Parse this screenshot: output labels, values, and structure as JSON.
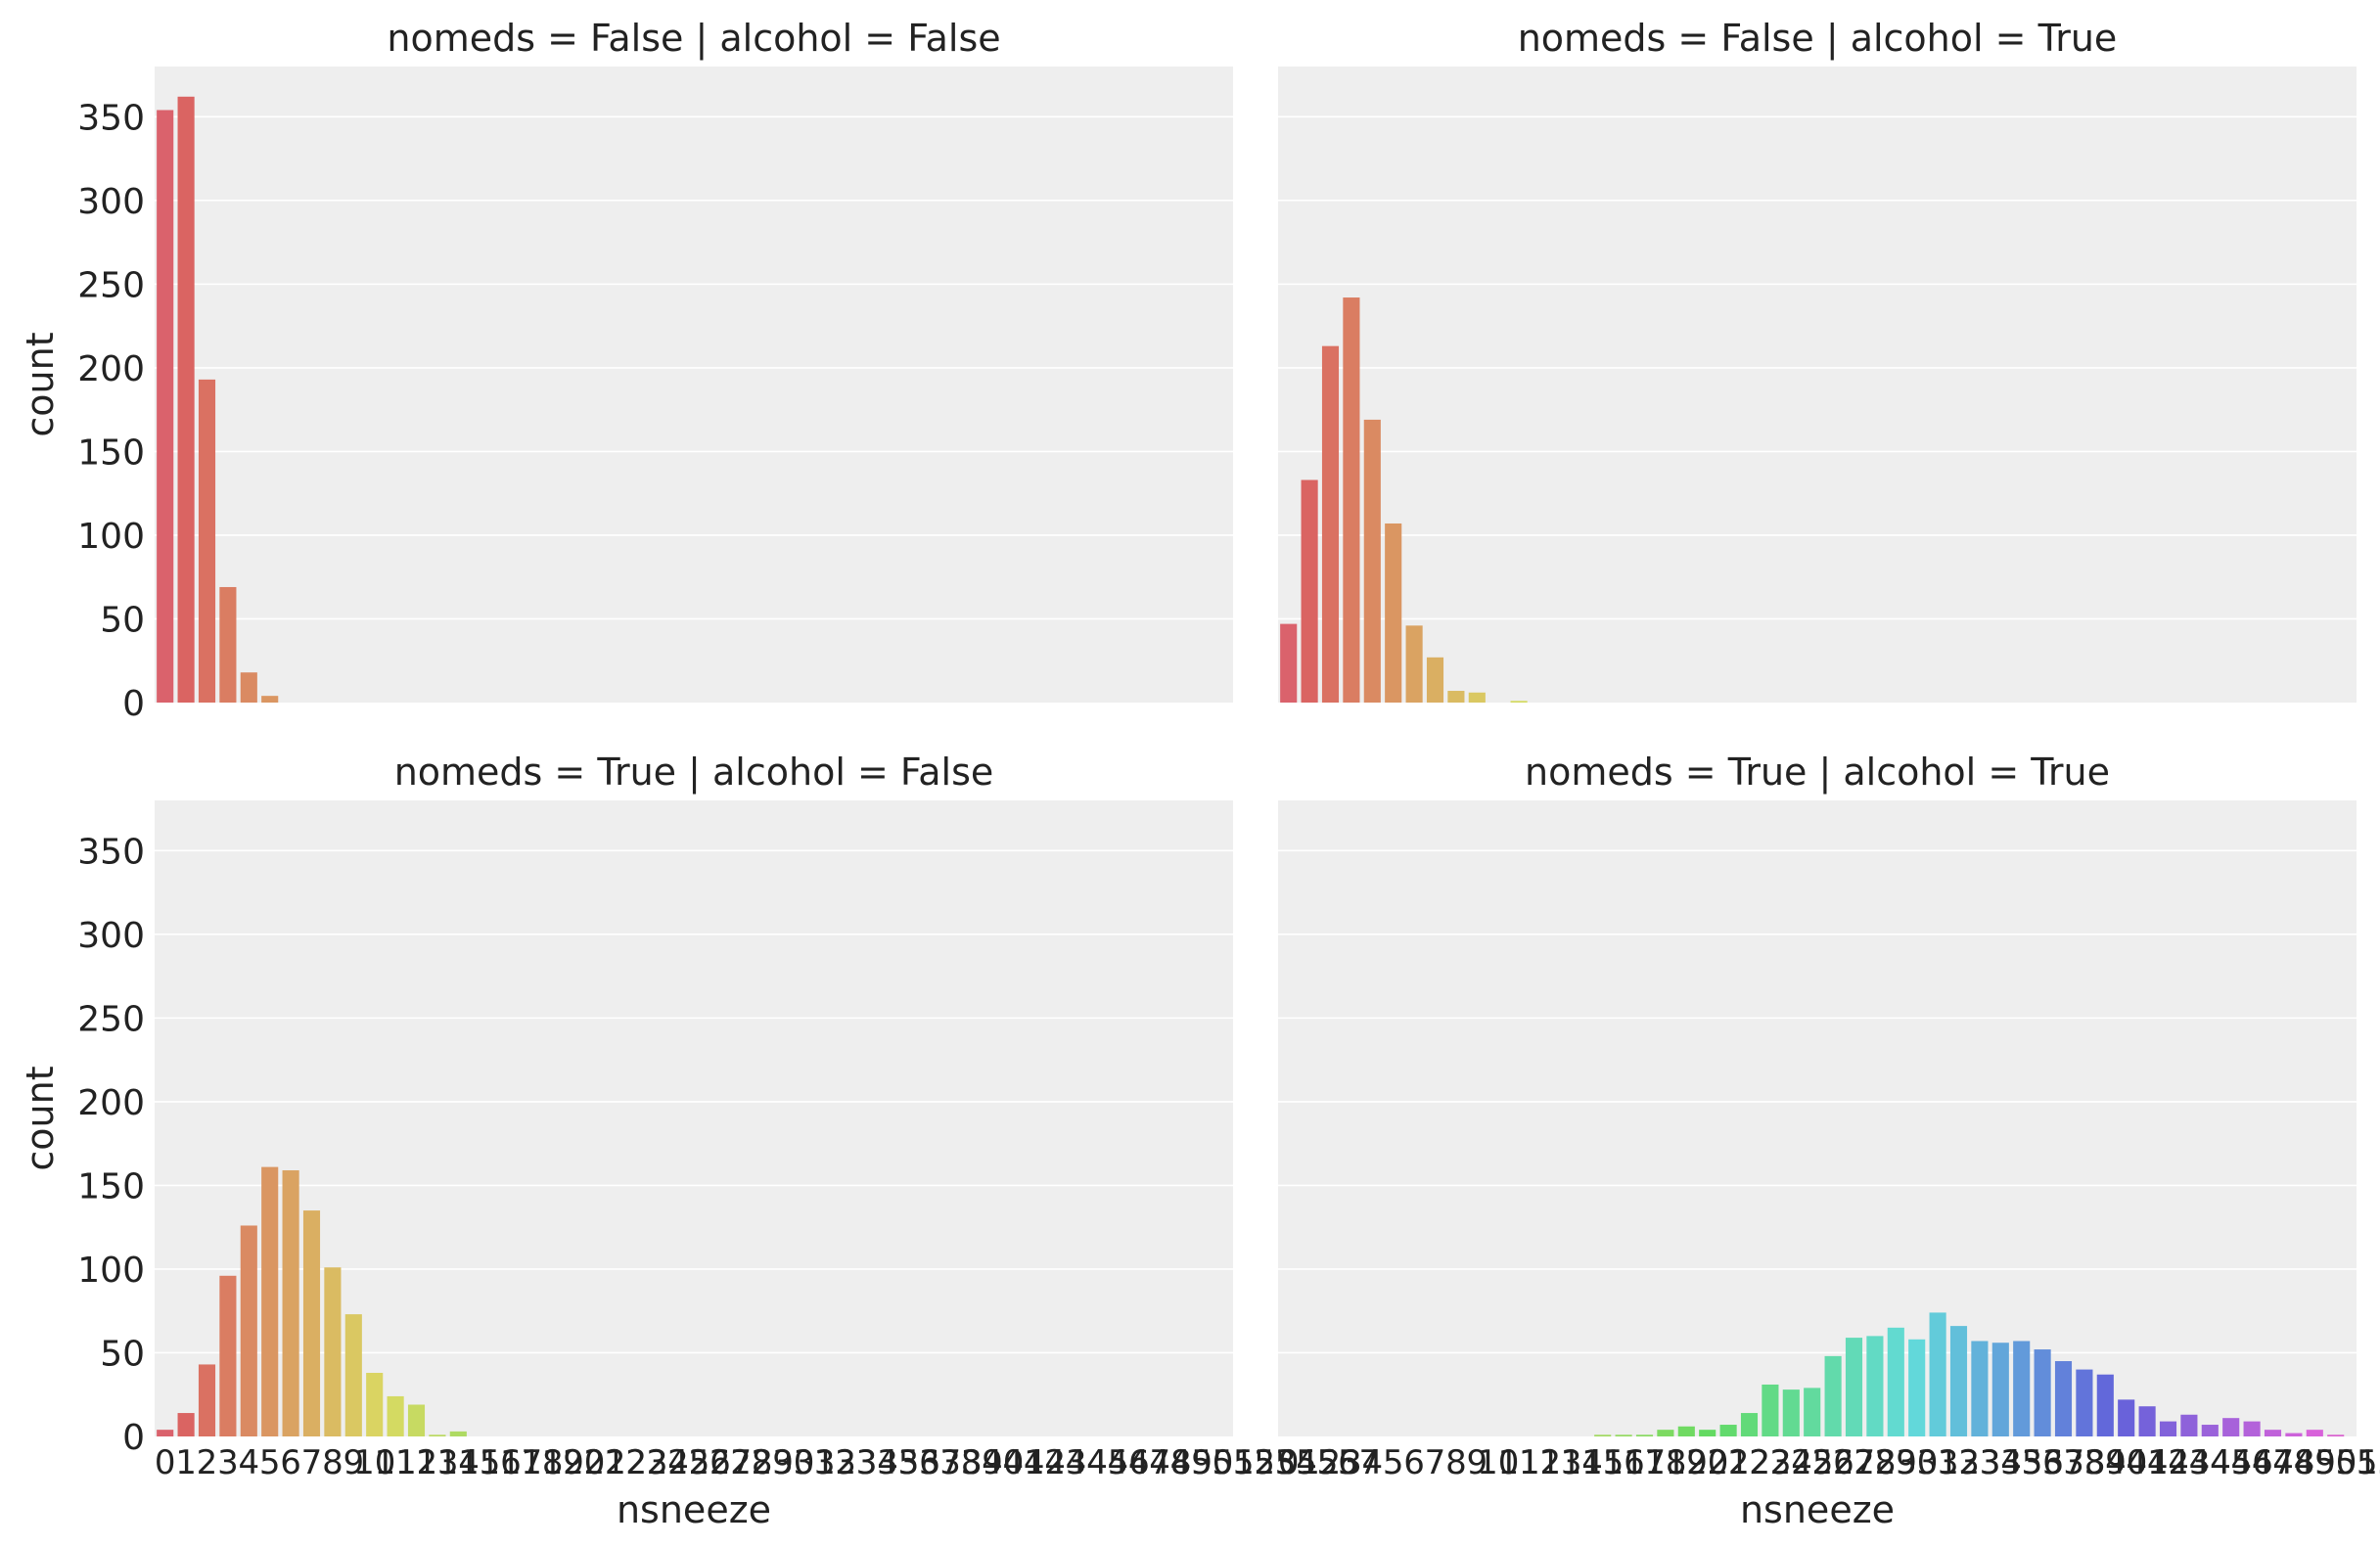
{
  "chart_data": {
    "type": "bar",
    "x_categories": [
      "0",
      "1",
      "2",
      "3",
      "4",
      "5",
      "6",
      "7",
      "8",
      "9",
      "10",
      "11",
      "12",
      "13",
      "14",
      "15",
      "16",
      "17",
      "18",
      "19",
      "20",
      "21",
      "22",
      "23",
      "24",
      "25",
      "26",
      "27",
      "28",
      "29",
      "30",
      "31",
      "32",
      "33",
      "34",
      "35",
      "36",
      "37",
      "38",
      "39",
      "40",
      "41",
      "42",
      "43",
      "44",
      "45",
      "46",
      "47",
      "48",
      "49",
      "50",
      "51",
      "52",
      "53",
      "54",
      "55",
      "56",
      "57"
    ],
    "xlabel": "nsneeze",
    "ylabel": "count",
    "ylim": [
      0,
      380
    ],
    "yticks": [
      0,
      50,
      100,
      150,
      200,
      250,
      300,
      350
    ],
    "grid": true,
    "facets": [
      {
        "title": "nomeds = False | alcohol = False",
        "values": [
          354,
          362,
          193,
          69,
          18,
          4
        ]
      },
      {
        "title": "nomeds = False | alcohol = True",
        "values": [
          47,
          133,
          213,
          242,
          169,
          107,
          46,
          27,
          7,
          6,
          0,
          1
        ]
      },
      {
        "title": "nomeds = True | alcohol = False",
        "values": [
          4,
          14,
          43,
          96,
          126,
          161,
          159,
          135,
          101,
          73,
          38,
          24,
          19,
          1,
          3
        ]
      },
      {
        "title": "nomeds = True | alcohol = True",
        "values": [
          0,
          0,
          0,
          0,
          0,
          0,
          0,
          0,
          0,
          0,
          0,
          0,
          0,
          0,
          0,
          1,
          1,
          1,
          4,
          6,
          4,
          7,
          14,
          31,
          28,
          29,
          48,
          59,
          60,
          65,
          58,
          74,
          66,
          57,
          56,
          57,
          52,
          45,
          40,
          37,
          22,
          18,
          9,
          13,
          7,
          11,
          9,
          4,
          2,
          4,
          1
        ]
      }
    ]
  }
}
